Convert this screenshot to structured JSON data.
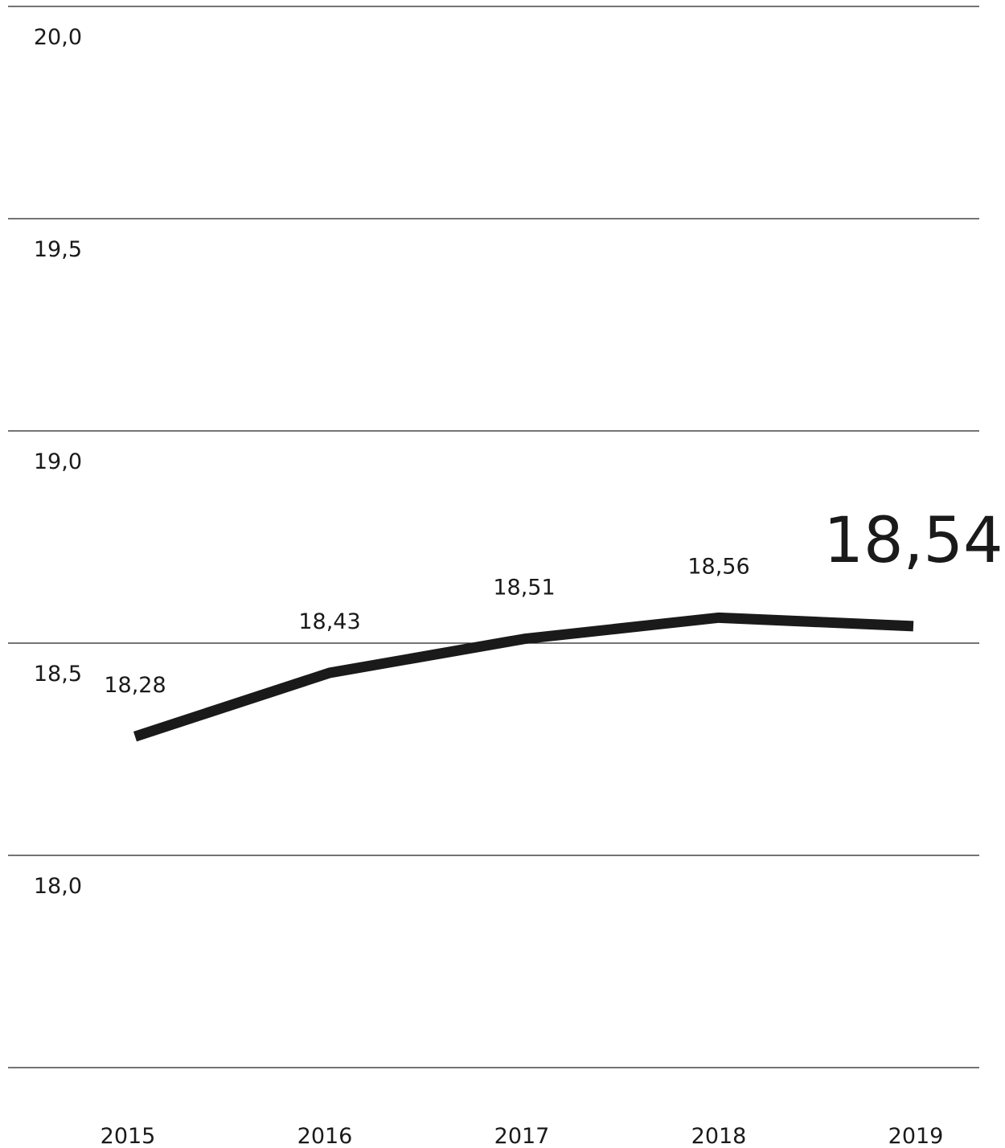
{
  "chart_data": {
    "type": "line",
    "x": [
      "2015",
      "2016",
      "2017",
      "2018",
      "2019"
    ],
    "values": [
      18.28,
      18.43,
      18.51,
      18.56,
      18.54
    ],
    "data_labels": [
      "18,28",
      "18,43",
      "18,51",
      "18,56",
      "18,54"
    ],
    "yticks": [
      {
        "value": 20.0,
        "label": "20,0"
      },
      {
        "value": 19.5,
        "label": "19,5"
      },
      {
        "value": 19.0,
        "label": "19,0"
      },
      {
        "value": 18.5,
        "label": "18,5"
      },
      {
        "value": 18.0,
        "label": "18,0"
      }
    ],
    "ylim": [
      17.5,
      20.0
    ],
    "grid": true,
    "legend": "none",
    "colors": {
      "line": "#1a1a1a",
      "grid": "#222222",
      "text": "#1a1a1a"
    },
    "highlight_last": true
  }
}
